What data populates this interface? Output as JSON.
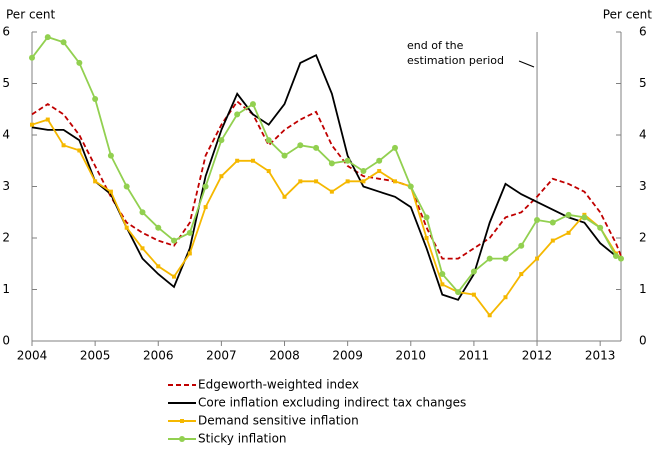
{
  "chart_data": {
    "type": "line",
    "y_label": "Per cent",
    "y2_label": "Per cent",
    "x": [
      2004,
      2004.25,
      2004.5,
      2004.75,
      2005,
      2005.25,
      2005.5,
      2005.75,
      2006,
      2006.25,
      2006.5,
      2006.75,
      2007,
      2007.25,
      2007.5,
      2007.75,
      2008,
      2008.25,
      2008.5,
      2008.75,
      2009,
      2009.25,
      2009.5,
      2009.75,
      2010,
      2010.25,
      2010.5,
      2010.75,
      2011,
      2011.25,
      2011.5,
      2011.75,
      2012,
      2012.25,
      2012.5,
      2012.75,
      2013,
      2013.25,
      2013.33
    ],
    "xlim": [
      2004,
      2013.33
    ],
    "xticks": [
      2004,
      2005,
      2006,
      2007,
      2008,
      2009,
      2010,
      2011,
      2012,
      2013
    ],
    "ylim": [
      0,
      6
    ],
    "yticks": [
      0,
      1,
      2,
      3,
      4,
      5,
      6
    ],
    "y2lim": [
      0,
      6
    ],
    "y2ticks": [
      0,
      1,
      2,
      3,
      4,
      5,
      6
    ],
    "annotation": {
      "text": [
        "end of the",
        "estimation period"
      ],
      "x": 2012
    },
    "series": [
      {
        "name": "Edgeworth-weighted index",
        "color": "#c00000",
        "style": "dashed",
        "marker": "none",
        "values": [
          4.4,
          4.6,
          4.4,
          4.0,
          3.4,
          2.8,
          2.3,
          2.1,
          1.95,
          1.85,
          2.3,
          3.6,
          4.2,
          4.65,
          4.4,
          3.8,
          4.1,
          4.3,
          4.45,
          3.8,
          3.4,
          3.2,
          3.15,
          3.1,
          3.0,
          2.2,
          1.6,
          1.6,
          1.8,
          2.0,
          2.4,
          2.5,
          2.8,
          3.15,
          3.05,
          2.9,
          2.5,
          1.9,
          1.65
        ]
      },
      {
        "name": "Core inflation excluding indirect tax changes",
        "color": "#000000",
        "style": "solid",
        "marker": "none",
        "values": [
          4.15,
          4.1,
          4.1,
          3.9,
          3.1,
          2.85,
          2.2,
          1.6,
          1.3,
          1.05,
          1.8,
          3.2,
          4.1,
          4.8,
          4.4,
          4.2,
          4.6,
          5.4,
          5.55,
          4.8,
          3.6,
          3.0,
          2.9,
          2.8,
          2.6,
          1.8,
          0.9,
          0.8,
          1.3,
          2.3,
          3.05,
          2.85,
          2.7,
          2.55,
          2.4,
          2.3,
          1.9,
          1.65,
          1.6
        ]
      },
      {
        "name": "Demand sensitive inflation",
        "color": "#f5b800",
        "style": "solid",
        "marker": "square",
        "values": [
          4.2,
          4.3,
          3.8,
          3.7,
          3.1,
          2.9,
          2.2,
          1.8,
          1.45,
          1.25,
          1.7,
          2.6,
          3.2,
          3.5,
          3.5,
          3.3,
          2.8,
          3.1,
          3.1,
          2.9,
          3.1,
          3.1,
          3.3,
          3.1,
          3.0,
          2.0,
          1.1,
          0.95,
          0.9,
          0.5,
          0.85,
          1.3,
          1.6,
          1.95,
          2.1,
          2.45,
          2.2,
          1.7,
          1.6
        ]
      },
      {
        "name": "Sticky inflation",
        "color": "#92d050",
        "style": "solid",
        "marker": "circle",
        "values": [
          5.5,
          5.9,
          5.8,
          5.4,
          4.7,
          3.6,
          3.0,
          2.5,
          2.2,
          1.95,
          2.1,
          3.0,
          3.9,
          4.4,
          4.6,
          3.9,
          3.6,
          3.8,
          3.75,
          3.45,
          3.5,
          3.3,
          3.5,
          3.75,
          3.0,
          2.4,
          1.3,
          0.95,
          1.35,
          1.6,
          1.6,
          1.85,
          2.35,
          2.3,
          2.45,
          2.4,
          2.2,
          1.65,
          1.6
        ]
      }
    ]
  }
}
